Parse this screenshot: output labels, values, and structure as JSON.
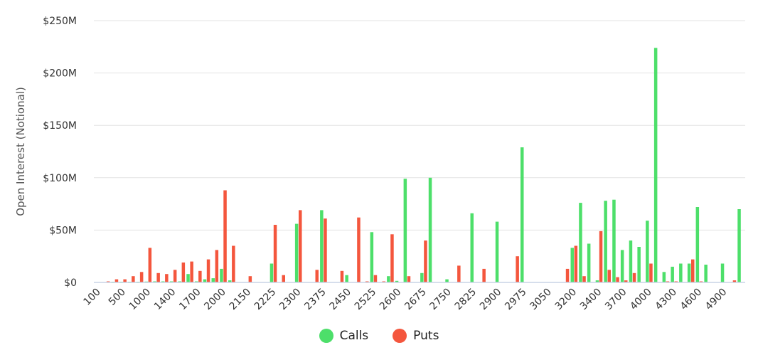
{
  "chart_data": {
    "type": "bar",
    "title": "",
    "xlabel": "",
    "ylabel": "Open Interest (Notional)",
    "ylim": [
      0,
      250
    ],
    "y_unit": "$M",
    "y_ticks": [
      "$0",
      "$50M",
      "$100M",
      "$150M",
      "$200M",
      "$250M"
    ],
    "grid": true,
    "legend_position": "bottom",
    "x_tick_labels": [
      "100",
      "500",
      "1000",
      "1400",
      "1700",
      "2000",
      "2150",
      "2225",
      "2300",
      "2375",
      "2450",
      "2525",
      "2600",
      "2675",
      "2750",
      "2825",
      "2900",
      "2975",
      "3050",
      "3200",
      "3400",
      "3700",
      "4000",
      "4300",
      "4600",
      "4900"
    ],
    "label_every": 3,
    "categories": [
      "100",
      "200",
      "300",
      "500",
      "600",
      "800",
      "1000",
      "1100",
      "1200",
      "1400",
      "1500",
      "1600",
      "1700",
      "1800",
      "1900",
      "2000",
      "2050",
      "2100",
      "2150",
      "2175",
      "2200",
      "2225",
      "2250",
      "2275",
      "2300",
      "2325",
      "2350",
      "2375",
      "2400",
      "2425",
      "2450",
      "2475",
      "2500",
      "2525",
      "2550",
      "2575",
      "2600",
      "2625",
      "2650",
      "2675",
      "2700",
      "2725",
      "2750",
      "2775",
      "2800",
      "2825",
      "2850",
      "2875",
      "2900",
      "2925",
      "2950",
      "2975",
      "3000",
      "3025",
      "3050",
      "3100",
      "3150",
      "3200",
      "3250",
      "3300",
      "3400",
      "3500",
      "3600",
      "3700",
      "3800",
      "3900",
      "4000",
      "4100",
      "4200",
      "4300",
      "4400",
      "4500",
      "4600",
      "4700",
      "4800",
      "4900",
      "5000",
      "5100"
    ],
    "series": [
      {
        "name": "Calls",
        "color": "#4ddf6a",
        "values": [
          0,
          0,
          0.3,
          0.5,
          0.5,
          0.5,
          0.8,
          1,
          1,
          1,
          1,
          8,
          1,
          3,
          4,
          13,
          2,
          0,
          0,
          0,
          0,
          18,
          0,
          0,
          56,
          0,
          0,
          69,
          0,
          0,
          7,
          0,
          0,
          48,
          0,
          6,
          1.5,
          99,
          0,
          9,
          100,
          0,
          3,
          0,
          0,
          66,
          0,
          0,
          58,
          0,
          0,
          129,
          0,
          0,
          0,
          0,
          0,
          33,
          76,
          37,
          2,
          78,
          79,
          31,
          40,
          34,
          59,
          224,
          10,
          15,
          18,
          18,
          72,
          17,
          0,
          18,
          0,
          70
        ]
      },
      {
        "name": "Puts",
        "color": "#f4563d",
        "values": [
          0,
          1,
          3,
          3,
          6,
          10,
          33,
          9,
          8,
          12,
          19,
          20,
          11,
          22,
          31,
          88,
          35,
          0,
          6,
          0,
          0,
          55,
          7,
          0,
          69,
          0,
          12,
          61,
          0,
          11,
          0,
          62,
          1,
          7,
          1,
          46,
          0,
          6,
          0,
          40,
          0,
          0,
          0,
          16,
          0,
          0,
          13,
          0,
          0,
          0,
          25,
          0,
          0,
          0,
          0,
          0,
          13,
          35,
          6,
          0,
          49,
          12,
          5,
          2,
          9,
          0,
          18,
          0,
          1,
          1,
          0,
          22,
          1,
          0,
          0,
          0,
          2,
          0
        ]
      }
    ]
  },
  "legend": {
    "items": [
      {
        "label": "Calls",
        "color": "#4ddf6a"
      },
      {
        "label": "Puts",
        "color": "#f4563d"
      }
    ]
  }
}
